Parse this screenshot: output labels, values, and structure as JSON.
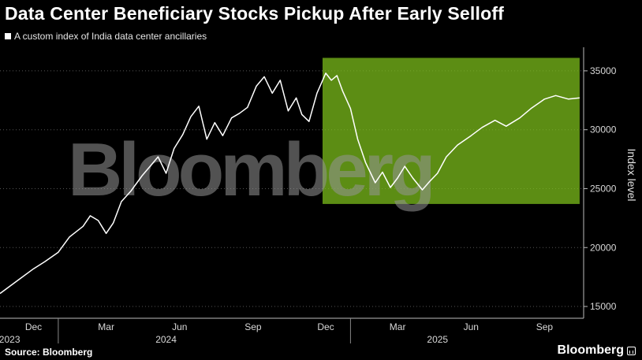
{
  "title": "Data Center Beneficiary Stocks Pickup After Early Selloff",
  "legend_label": "A custom index of India data center ancillaries",
  "source": "Source: Bloomberg",
  "brand": "Bloomberg",
  "watermark": "Bloomberg",
  "colors": {
    "background": "#000000",
    "line": "#ffffff",
    "highlight": "#7fc31c",
    "grid": "#555555",
    "watermark": "#969696"
  },
  "chart_data": {
    "type": "line",
    "title": "Data Center Beneficiary Stocks Pickup After Early Selloff",
    "ylabel": "Index level",
    "ylim": [
      14000,
      37000
    ],
    "yticks": [
      15000,
      20000,
      25000,
      30000,
      35000
    ],
    "grid": "horizontal dotted",
    "legend_position": "top-left",
    "x_tick_labels": [
      "Dec",
      "Mar",
      "Jun",
      "Sep",
      "Dec",
      "Mar",
      "Jun",
      "Sep"
    ],
    "x_ticks": [
      "2023-12-01",
      "2024-03-01",
      "2024-06-01",
      "2024-09-01",
      "2024-12-01",
      "2025-03-01",
      "2025-06-01",
      "2025-09-01"
    ],
    "year_labels": [
      {
        "label": "2023",
        "date": "2023-11-01"
      },
      {
        "label": "2024",
        "date": "2024-05-15"
      },
      {
        "label": "2025",
        "date": "2025-04-20"
      }
    ],
    "xlim": [
      "2023-10-20",
      "2025-10-20"
    ],
    "highlight": {
      "x_start": "2024-11-27",
      "x_end": "2025-10-15",
      "y_low": 23700,
      "y_high": 36100
    },
    "series": [
      {
        "values": [
          [
            "2023-10-20",
            16100
          ],
          [
            "2023-11-01",
            16700
          ],
          [
            "2023-11-15",
            17400
          ],
          [
            "2023-12-01",
            18200
          ],
          [
            "2023-12-15",
            18800
          ],
          [
            "2024-01-01",
            19600
          ],
          [
            "2024-01-15",
            20900
          ],
          [
            "2024-02-01",
            21800
          ],
          [
            "2024-02-10",
            22700
          ],
          [
            "2024-02-20",
            22300
          ],
          [
            "2024-03-01",
            21200
          ],
          [
            "2024-03-10",
            22100
          ],
          [
            "2024-03-20",
            23900
          ],
          [
            "2024-04-01",
            24800
          ],
          [
            "2024-04-15",
            26100
          ],
          [
            "2024-04-25",
            26900
          ],
          [
            "2024-05-05",
            27700
          ],
          [
            "2024-05-15",
            26300
          ],
          [
            "2024-05-25",
            28400
          ],
          [
            "2024-06-05",
            29600
          ],
          [
            "2024-06-15",
            31100
          ],
          [
            "2024-06-25",
            32000
          ],
          [
            "2024-07-05",
            29200
          ],
          [
            "2024-07-15",
            30600
          ],
          [
            "2024-07-25",
            29500
          ],
          [
            "2024-08-05",
            31000
          ],
          [
            "2024-08-15",
            31400
          ],
          [
            "2024-08-25",
            31900
          ],
          [
            "2024-09-05",
            33700
          ],
          [
            "2024-09-15",
            34500
          ],
          [
            "2024-09-25",
            33100
          ],
          [
            "2024-10-05",
            34200
          ],
          [
            "2024-10-15",
            31600
          ],
          [
            "2024-10-25",
            32700
          ],
          [
            "2024-11-01",
            31300
          ],
          [
            "2024-11-10",
            30700
          ],
          [
            "2024-11-20",
            33100
          ],
          [
            "2024-12-01",
            34800
          ],
          [
            "2024-12-08",
            34200
          ],
          [
            "2024-12-15",
            34600
          ],
          [
            "2024-12-22",
            33300
          ],
          [
            "2025-01-01",
            31800
          ],
          [
            "2025-01-10",
            29200
          ],
          [
            "2025-01-20",
            27200
          ],
          [
            "2025-02-01",
            25500
          ],
          [
            "2025-02-10",
            26400
          ],
          [
            "2025-02-20",
            25100
          ],
          [
            "2025-03-01",
            25900
          ],
          [
            "2025-03-10",
            26900
          ],
          [
            "2025-03-20",
            25900
          ],
          [
            "2025-04-01",
            24900
          ],
          [
            "2025-04-10",
            25600
          ],
          [
            "2025-04-20",
            26300
          ],
          [
            "2025-05-01",
            27700
          ],
          [
            "2025-05-15",
            28700
          ],
          [
            "2025-06-01",
            29500
          ],
          [
            "2025-06-15",
            30200
          ],
          [
            "2025-07-01",
            30800
          ],
          [
            "2025-07-15",
            30300
          ],
          [
            "2025-08-01",
            31000
          ],
          [
            "2025-08-15",
            31800
          ],
          [
            "2025-09-01",
            32600
          ],
          [
            "2025-09-15",
            32900
          ],
          [
            "2025-10-01",
            32600
          ],
          [
            "2025-10-15",
            32700
          ]
        ]
      }
    ]
  }
}
